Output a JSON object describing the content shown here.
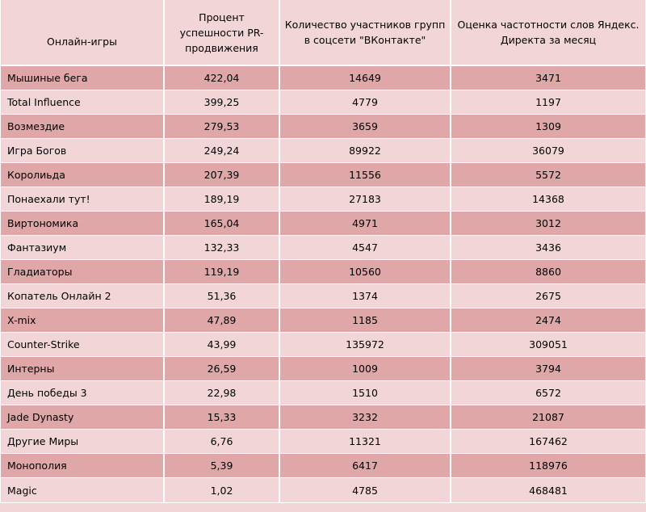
{
  "table": {
    "headers": [
      "Онлайн-игры",
      "Процент успешности PR-продвижения",
      "Количество участников групп в соцсети \"ВКонтакте\"",
      "Оценка частотности слов Яндекс. Директа за месяц"
    ],
    "rows": [
      {
        "name": "Мышиные бега",
        "pr": "422,04",
        "vk": "14649",
        "yandex": "3471"
      },
      {
        "name": "Total Influence",
        "pr": "399,25",
        "vk": "4779",
        "yandex": "1197"
      },
      {
        "name": "Возмездие",
        "pr": "279,53",
        "vk": "3659",
        "yandex": "1309"
      },
      {
        "name": "Игра Богов",
        "pr": "249,24",
        "vk": "89922",
        "yandex": "36079"
      },
      {
        "name": "Королиьда",
        "pr": "207,39",
        "vk": "11556",
        "yandex": "5572"
      },
      {
        "name": "Понаехали тут!",
        "pr": "189,19",
        "vk": "27183",
        "yandex": "14368"
      },
      {
        "name": "Виртономика",
        "pr": "165,04",
        "vk": "4971",
        "yandex": "3012"
      },
      {
        "name": "Фантазиум",
        "pr": "132,33",
        "vk": "4547",
        "yandex": "3436"
      },
      {
        "name": "Гладиаторы",
        "pr": "119,19",
        "vk": "10560",
        "yandex": "8860"
      },
      {
        "name": "Копатель Онлайн 2",
        "pr": "51,36",
        "vk": "1374",
        "yandex": "2675"
      },
      {
        "name": "X-mix",
        "pr": "47,89",
        "vk": "1185",
        "yandex": "2474"
      },
      {
        "name": "Counter-Strike",
        "pr": "43,99",
        "vk": "135972",
        "yandex": "309051"
      },
      {
        "name": "Интерны",
        "pr": "26,59",
        "vk": "1009",
        "yandex": "3794"
      },
      {
        "name": "День победы 3",
        "pr": "22,98",
        "vk": "1510",
        "yandex": "6572"
      },
      {
        "name": "Jade Dynasty",
        "pr": "15,33",
        "vk": "3232",
        "yandex": "21087"
      },
      {
        "name": "Другие Миры",
        "pr": "6,76",
        "vk": "11321",
        "yandex": "167462"
      },
      {
        "name": "Монополия",
        "pr": "5,39",
        "vk": "6417",
        "yandex": "118976"
      },
      {
        "name": "Magic",
        "pr": "1,02",
        "vk": "4785",
        "yandex": "468481"
      }
    ]
  },
  "colors": {
    "dark_row": "#dfa7a8",
    "light_row": "#f2d6d7",
    "grid_line": "#ffffff"
  }
}
